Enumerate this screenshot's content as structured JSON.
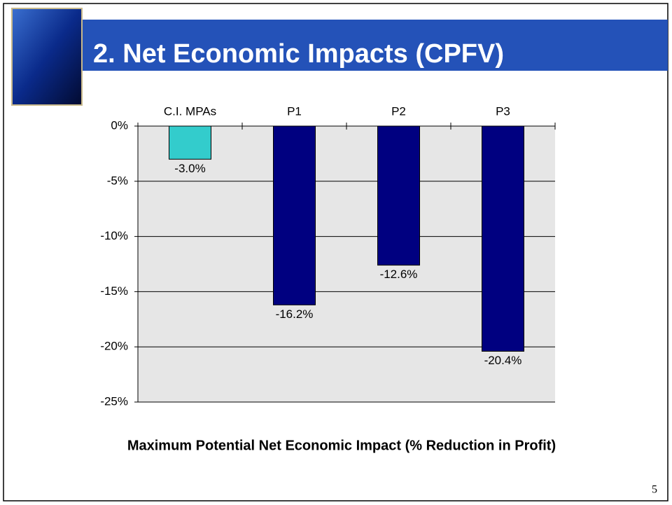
{
  "chart_data": {
    "type": "bar",
    "title": "2. Net Economic Impacts (CPFV)",
    "categories": [
      "C.I. MPAs",
      "P1",
      "P2",
      "P3"
    ],
    "values": [
      -3.0,
      -16.2,
      -12.6,
      -20.4
    ],
    "value_labels": [
      "-3.0%",
      "-16.2%",
      "-12.6%",
      "-20.4%"
    ],
    "colors": [
      "#33cccc",
      "#000080",
      "#000080",
      "#000080"
    ],
    "ylim": [
      -25,
      0
    ],
    "yticks": [
      {
        "value": 0,
        "label": "0%"
      },
      {
        "value": -5,
        "label": "-5%"
      },
      {
        "value": -10,
        "label": "-10%"
      },
      {
        "value": -15,
        "label": "-15%"
      },
      {
        "value": -20,
        "label": "-20%"
      },
      {
        "value": -25,
        "label": "-25%"
      }
    ],
    "xlabel": "Maximum Potential Net Economic Impact (% Reduction in Profit)",
    "grid": true
  },
  "page_number": 5
}
